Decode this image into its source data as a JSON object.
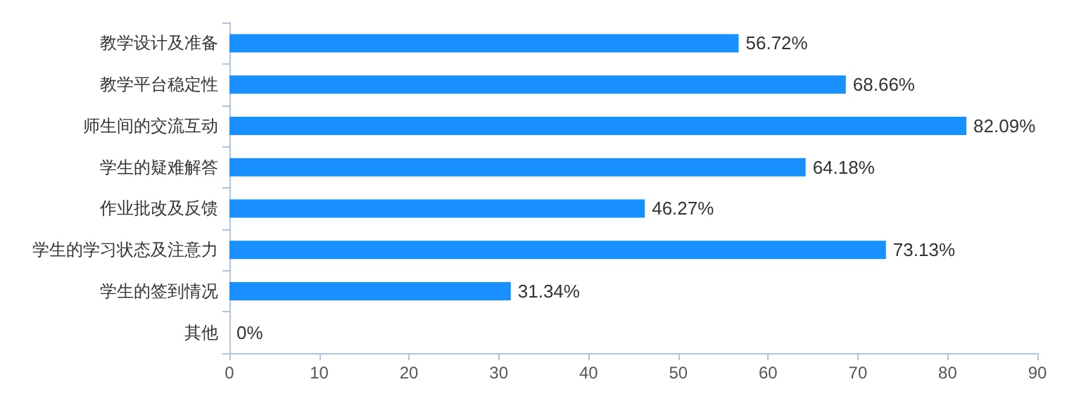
{
  "chart_data": {
    "type": "bar",
    "orientation": "horizontal",
    "categories": [
      "教学设计及准备",
      "教学平台稳定性",
      "师生间的交流互动",
      "学生的疑难解答",
      "作业批改及反馈",
      "学生的学习状态及注意力",
      "学生的签到情况",
      "其他"
    ],
    "values": [
      56.72,
      68.66,
      82.09,
      64.18,
      46.27,
      73.13,
      31.34,
      0
    ],
    "value_labels": [
      "56.72%",
      "68.66%",
      "82.09%",
      "64.18%",
      "46.27%",
      "73.13%",
      "31.34%",
      "0%"
    ],
    "color": "#1890ff",
    "xlim": [
      0,
      90
    ],
    "xticks": [
      0,
      10,
      20,
      30,
      40,
      50,
      60,
      70,
      80,
      90
    ],
    "grid": false
  }
}
